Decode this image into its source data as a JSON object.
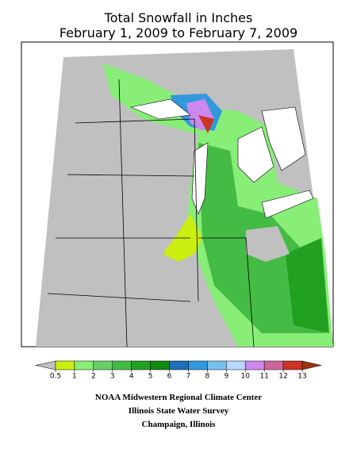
{
  "title": [
    "Total Snowfall in Inches",
    "February 1, 2009 to February 7, 2009"
  ],
  "colorbar": {
    "ticks": [
      0.5,
      1,
      2,
      3,
      4,
      5,
      6,
      7,
      8,
      9,
      10,
      11,
      12,
      13
    ],
    "colors": [
      "#c0c0c0",
      "#ccee11",
      "#88ee77",
      "#66d066",
      "#44bb44",
      "#22a022",
      "#118811",
      "#1f6fb8",
      "#3399dd",
      "#77c0ee",
      "#b8d8ff",
      "#cc88ee",
      "#cc6699",
      "#cc3322",
      "#993311"
    ]
  },
  "credits": [
    "NOAA Midwestern Regional Climate Center",
    "Illinois State Water Survey",
    "Champaign, Illinois"
  ]
}
